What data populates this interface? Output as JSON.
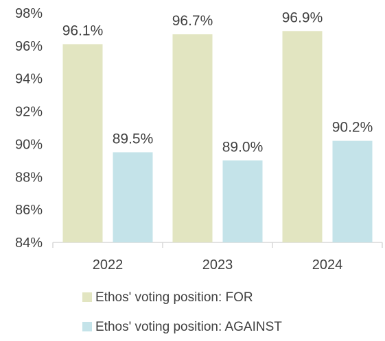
{
  "chart_data": {
    "type": "bar",
    "categories": [
      "2022",
      "2023",
      "2024"
    ],
    "series": [
      {
        "name": "Ethos' voting position: FOR",
        "values": [
          96.1,
          96.7,
          96.9
        ],
        "labels": [
          "96.1%",
          "96.7%",
          "96.9%"
        ],
        "color": "#e2e5c1"
      },
      {
        "name": "Ethos' voting position: AGAINST",
        "values": [
          89.5,
          89.0,
          90.2
        ],
        "labels": [
          "89.5%",
          "89.0%",
          "90.2%"
        ],
        "color": "#c4e3e9"
      }
    ],
    "ylim": [
      84,
      98
    ],
    "yticks": [
      84,
      86,
      88,
      90,
      92,
      94,
      96,
      98
    ],
    "ytick_labels": [
      "84%",
      "86%",
      "88%",
      "90%",
      "92%",
      "94%",
      "96%",
      "98%"
    ],
    "grid": false,
    "legend_position": "bottom",
    "title": "",
    "xlabel": "",
    "ylabel": ""
  },
  "colors": {
    "axis": "#d9d9d9",
    "text": "#404040"
  }
}
